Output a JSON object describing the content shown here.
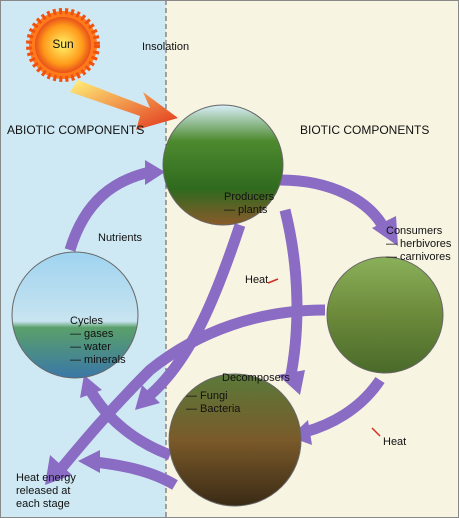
{
  "sun": "Sun",
  "insolation": "Insolation",
  "sections": {
    "abiotic": "ABIOTIC COMPONENTS",
    "biotic": "BIOTIC COMPONENTS"
  },
  "nodes": [
    {
      "label": "Producers",
      "items": [
        "— plants"
      ]
    },
    {
      "label": "Consumers",
      "items": [
        "— herbivores",
        "— carnivores"
      ]
    },
    {
      "label": "Cycles",
      "items": [
        "— gases",
        "— water",
        "— minerals"
      ]
    },
    {
      "label": "Decomposers",
      "items": [
        "— Fungi",
        "— Bacteria"
      ]
    }
  ],
  "labels": {
    "nutrients": "Nutrients",
    "heat": [
      "Heat",
      "Heat"
    ],
    "heat_energy": [
      "Heat energy",
      "released at",
      "each stage"
    ]
  }
}
